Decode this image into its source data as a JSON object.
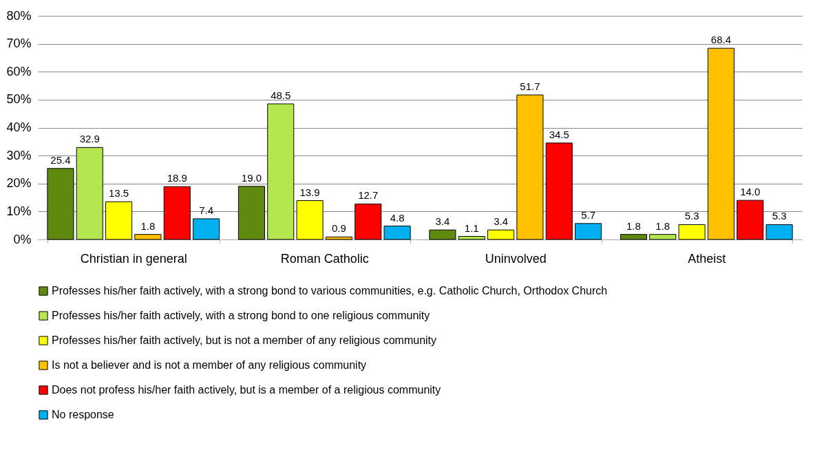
{
  "chart_data": {
    "type": "bar",
    "categories": [
      "Christian in general",
      "Roman Catholic",
      "Uninvolved",
      "Atheist"
    ],
    "series": [
      {
        "name": "Professes his/her faith actively, with a strong bond to various communities, e.g. Catholic Church, Orthodox Church",
        "color": "#5f8a0f",
        "values": [
          25.4,
          19.0,
          3.4,
          1.8
        ],
        "value_labels": [
          "25.4",
          "19.0",
          "3.4",
          "1.8"
        ]
      },
      {
        "name": "Professes his/her faith actively, with a strong bond to one religious community",
        "color": "#b3e64f",
        "values": [
          32.9,
          48.5,
          1.1,
          1.8
        ],
        "value_labels": [
          "32.9",
          "48.5",
          "1.1",
          "1.8"
        ]
      },
      {
        "name": "Professes his/her faith actively, but is not a member of any religious community",
        "color": "#ffff00",
        "values": [
          13.5,
          13.9,
          3.4,
          5.3
        ],
        "value_labels": [
          "13.5",
          "13.9",
          "3.4",
          "5.3"
        ]
      },
      {
        "name": "Is not a believer and is not a member of any religious community",
        "color": "#ffc000",
        "values": [
          1.8,
          0.9,
          51.7,
          68.4
        ],
        "value_labels": [
          "1.8",
          "0.9",
          "51.7",
          "68.4"
        ]
      },
      {
        "name": "Does not profess his/her faith actively, but is a member of a religious community",
        "color": "#ff0000",
        "values": [
          18.9,
          12.7,
          34.5,
          14.0
        ],
        "value_labels": [
          "18.9",
          "12.7",
          "34.5",
          "14.0"
        ]
      },
      {
        "name": "No response",
        "color": "#00b0f0",
        "values": [
          7.4,
          4.8,
          5.7,
          5.3
        ],
        "value_labels": [
          "7.4",
          "4.8",
          "5.7",
          "5.3"
        ]
      }
    ],
    "ylim": [
      0,
      80
    ],
    "yticks": [
      {
        "value": 0,
        "label": "0%"
      },
      {
        "value": 10,
        "label": "10%"
      },
      {
        "value": 20,
        "label": "20%"
      },
      {
        "value": 30,
        "label": "30%"
      },
      {
        "value": 40,
        "label": "40%"
      },
      {
        "value": 50,
        "label": "50%"
      },
      {
        "value": 60,
        "label": "60%"
      },
      {
        "value": 70,
        "label": "70%"
      },
      {
        "value": 80,
        "label": "80%"
      }
    ],
    "grid": "y",
    "legend": "bottom"
  }
}
